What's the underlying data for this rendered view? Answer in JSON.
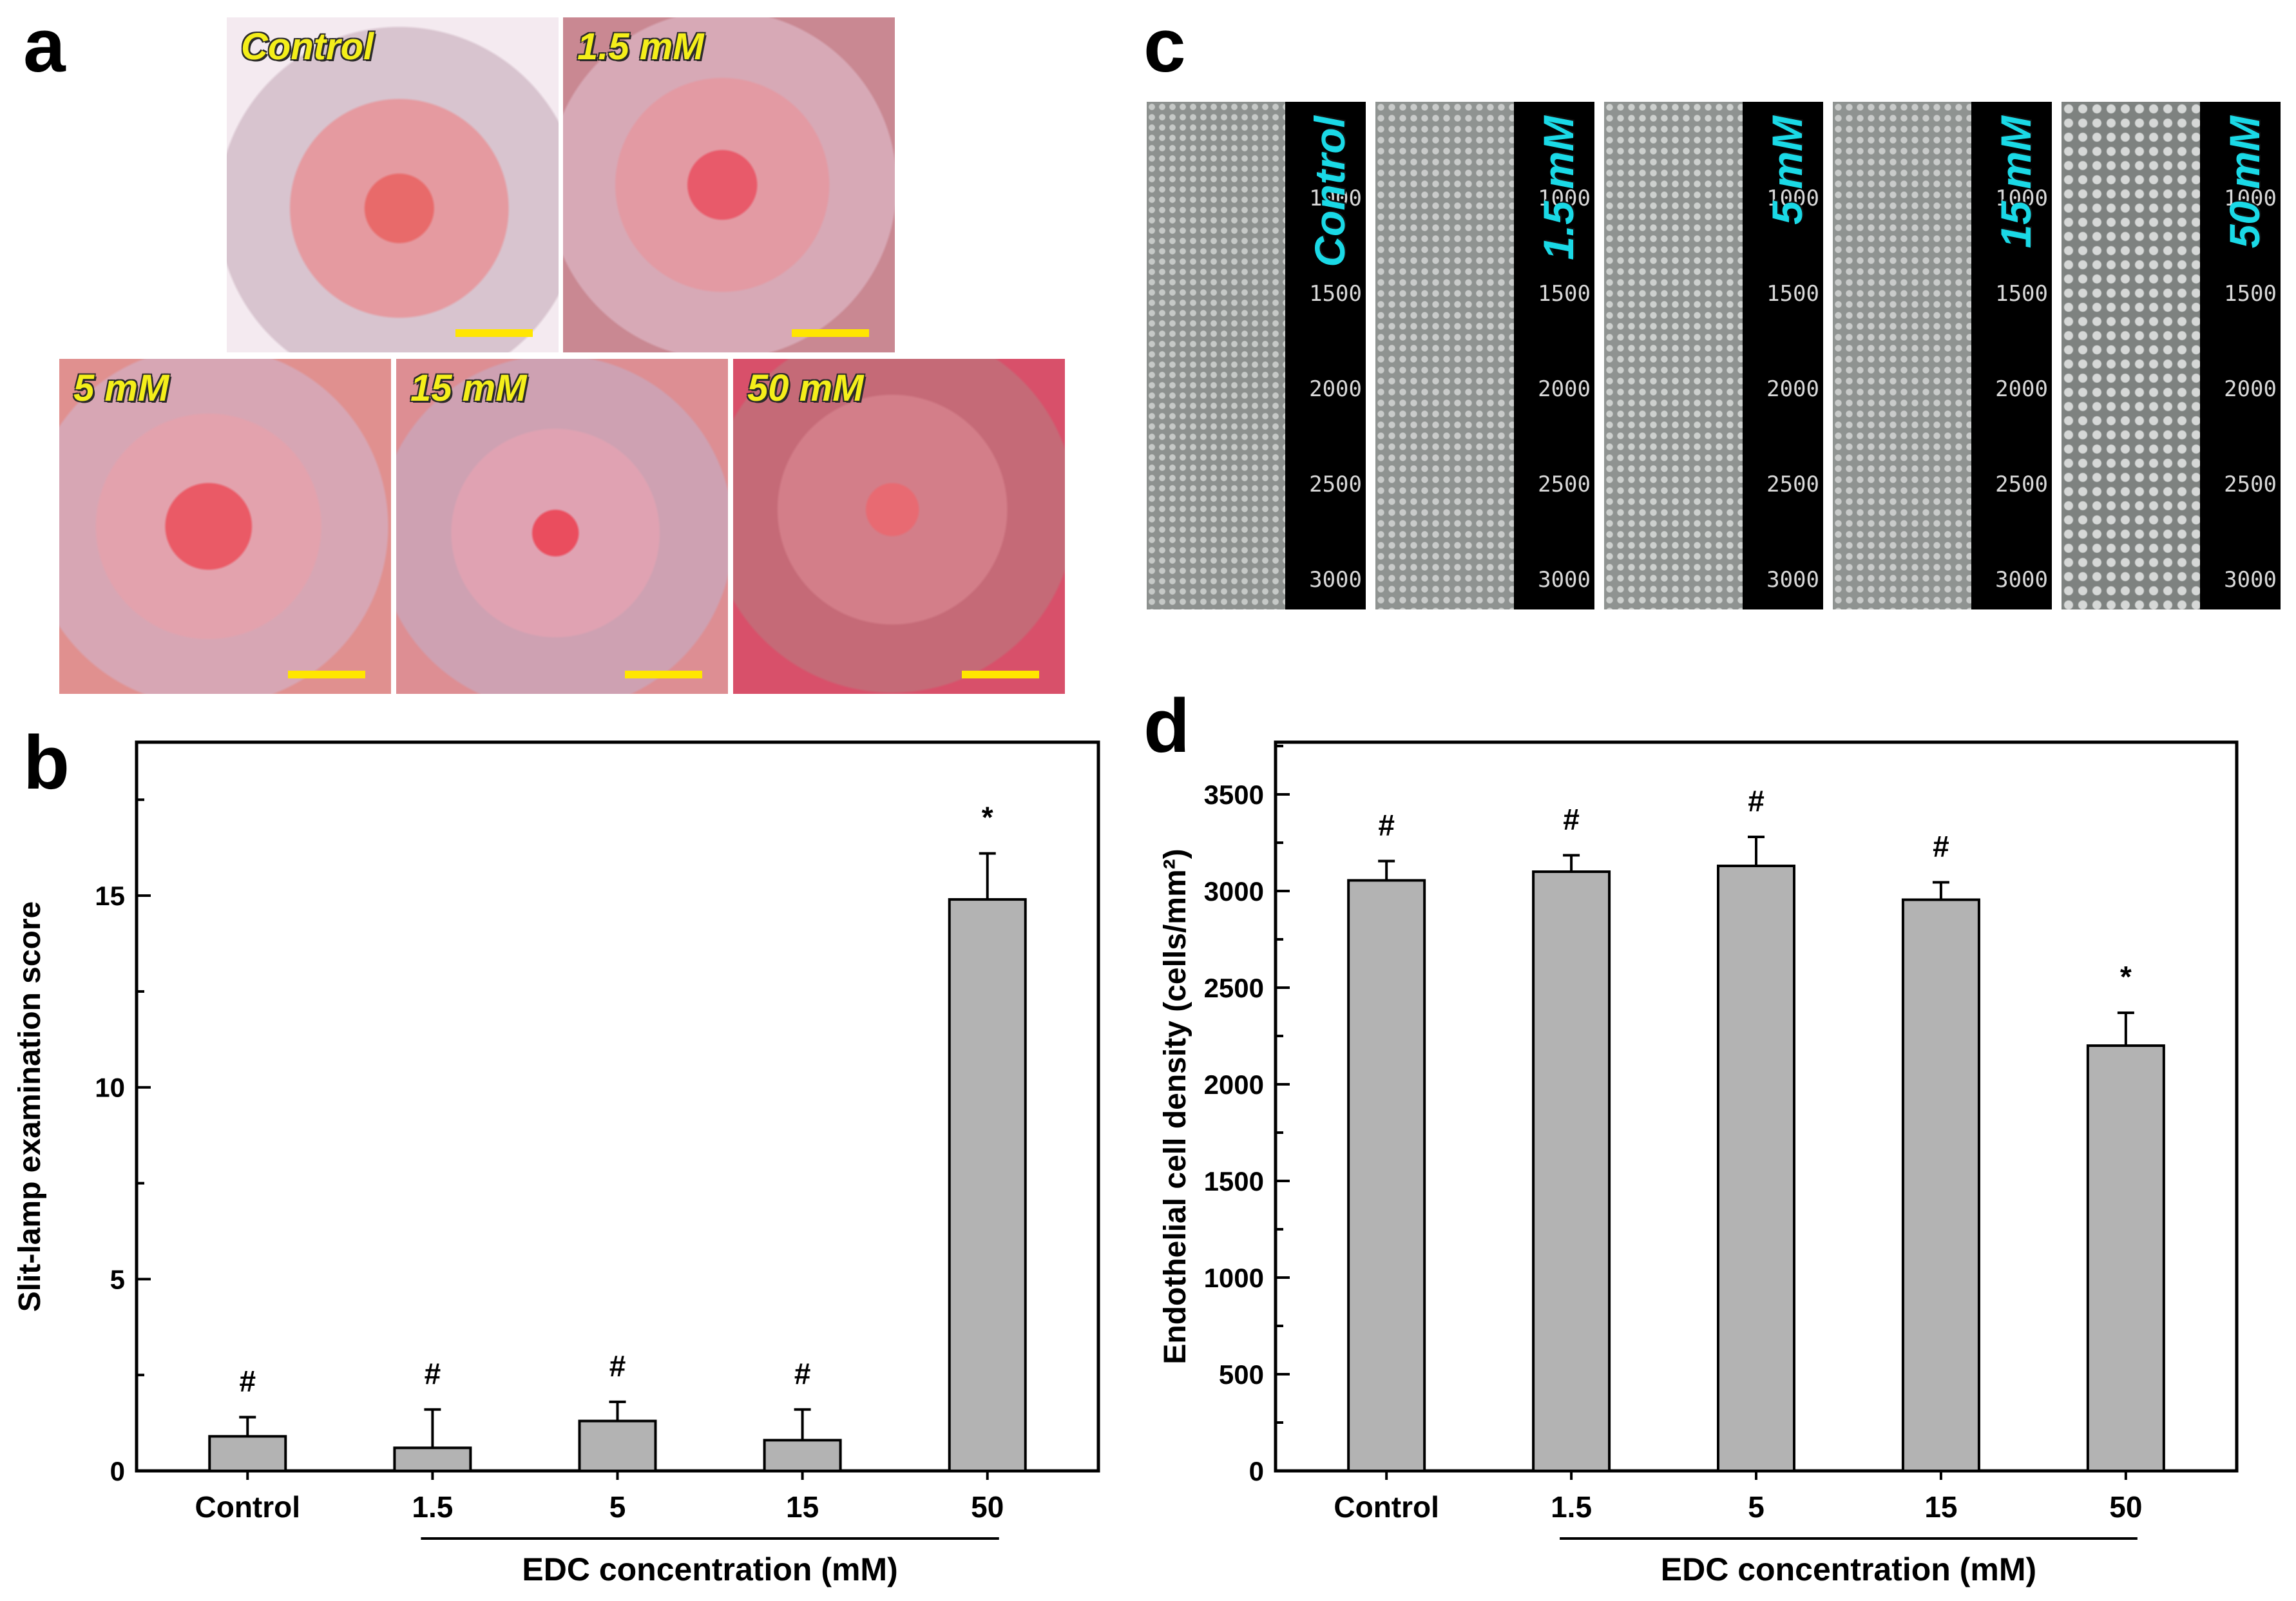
{
  "panel_letters": {
    "a": "a",
    "b": "b",
    "c": "c",
    "d": "d"
  },
  "panel_a": {
    "label_color": "#f4ee1a",
    "scalebar_color": "#ffe600",
    "photos": [
      {
        "label": "Control"
      },
      {
        "label": "1.5 mM"
      },
      {
        "label": "5 mM"
      },
      {
        "label": "15 mM"
      },
      {
        "label": "50 mM"
      }
    ]
  },
  "panel_c": {
    "label_color": "#1ad9e6",
    "scale_ticks": [
      "1000",
      "1500",
      "2000",
      "2500",
      "3000"
    ],
    "images": [
      {
        "label": "Control"
      },
      {
        "label": "1.5 mM"
      },
      {
        "label": "5 mM"
      },
      {
        "label": "15 mM"
      },
      {
        "label": "50 mM"
      }
    ]
  },
  "chart_data": [
    {
      "type": "bar",
      "panel": "b",
      "categories": [
        "Control",
        "1.5",
        "5",
        "15",
        "50"
      ],
      "values": [
        0.9,
        0.6,
        1.3,
        0.8,
        14.9
      ],
      "errors": [
        0.5,
        1.0,
        0.5,
        0.8,
        1.2
      ],
      "annotations": [
        "#",
        "#",
        "#",
        "#",
        "*"
      ],
      "ylabel": "Slit-lamp examination score",
      "xlabel": "EDC concentration (mM)",
      "yticks": [
        "0",
        "5",
        "10",
        "15"
      ],
      "ylim": [
        0,
        19
      ],
      "bar_color": "#b3b3b3",
      "grid": false
    },
    {
      "type": "bar",
      "panel": "d",
      "categories": [
        "Control",
        "1.5",
        "5",
        "15",
        "50"
      ],
      "values": [
        3055,
        3100,
        3130,
        2955,
        2200
      ],
      "errors": [
        100,
        85,
        150,
        90,
        170
      ],
      "annotations": [
        "#",
        "#",
        "#",
        "#",
        "*"
      ],
      "ylabel": "Endothelial cell density (cells/mm²)",
      "xlabel": "EDC concentration (mM)",
      "yticks": [
        "0",
        "500",
        "1000",
        "1500",
        "2000",
        "2500",
        "3000",
        "3500"
      ],
      "ylim": [
        0,
        3770
      ],
      "bar_color": "#b3b3b3",
      "grid": false
    }
  ]
}
